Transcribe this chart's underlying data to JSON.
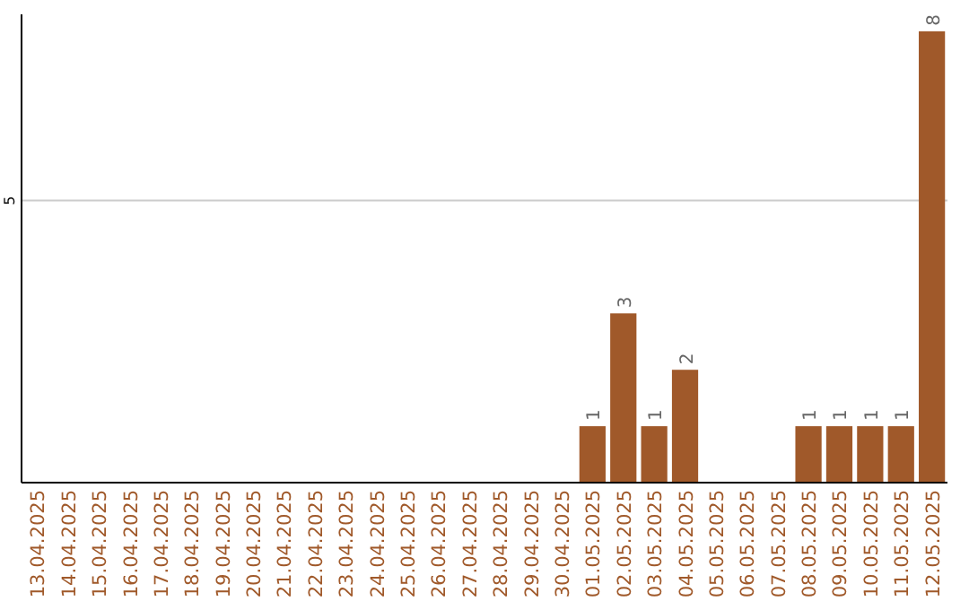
{
  "chart_data": {
    "type": "bar",
    "categories": [
      "13.04.2025",
      "14.04.2025",
      "15.04.2025",
      "16.04.2025",
      "17.04.2025",
      "18.04.2025",
      "19.04.2025",
      "20.04.2025",
      "21.04.2025",
      "22.04.2025",
      "23.04.2025",
      "24.04.2025",
      "25.04.2025",
      "26.04.2025",
      "27.04.2025",
      "28.04.2025",
      "29.04.2025",
      "30.04.2025",
      "01.05.2025",
      "02.05.2025",
      "03.05.2025",
      "04.05.2025",
      "05.05.2025",
      "06.05.2025",
      "07.05.2025",
      "08.05.2025",
      "09.05.2025",
      "10.05.2025",
      "11.05.2025",
      "12.05.2025"
    ],
    "values": [
      null,
      null,
      null,
      null,
      null,
      null,
      null,
      null,
      null,
      null,
      null,
      null,
      null,
      null,
      null,
      null,
      null,
      null,
      1,
      3,
      1,
      2,
      null,
      null,
      null,
      1,
      1,
      1,
      1,
      8
    ],
    "data_labels": true,
    "legend": false,
    "color": "#a0592a",
    "ylim": [
      0,
      8.3
    ],
    "ref_lines": [
      {
        "axis": "y",
        "value": 5,
        "label": "5",
        "color": "#cccccc"
      }
    ]
  }
}
